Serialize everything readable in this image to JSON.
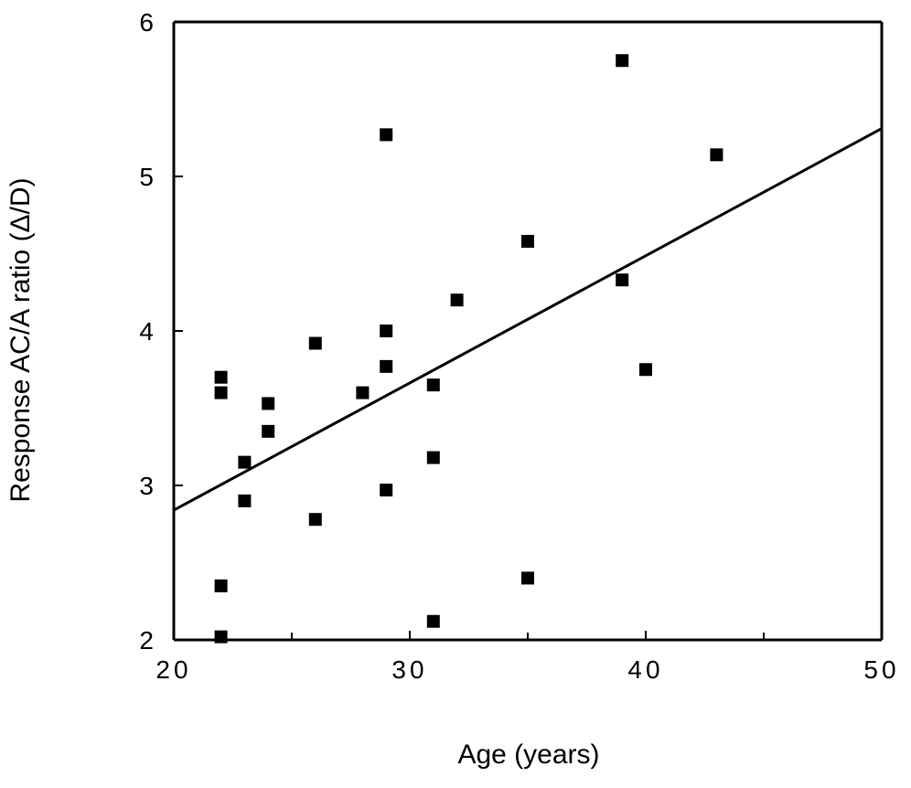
{
  "chart_data": {
    "type": "scatter",
    "title": "",
    "xlabel": "Age  (years)",
    "ylabel": "Response  AC/A  ratio  (Δ/D)",
    "xlim": [
      20,
      50
    ],
    "ylim": [
      2,
      6
    ],
    "x_ticks": [
      20,
      30,
      40,
      50
    ],
    "x_tick_labels": [
      "20",
      "30",
      "40",
      "50"
    ],
    "x_minor_ticks": [
      25,
      35,
      45
    ],
    "y_ticks": [
      2,
      3,
      4,
      5,
      6
    ],
    "y_tick_labels": [
      "2",
      "3",
      "4",
      "5",
      "6"
    ],
    "grid": false,
    "legend": "none",
    "marker": "filled-square",
    "colors": {
      "marker": "#000000",
      "line": "#000000",
      "axes": "#000000"
    },
    "points": [
      {
        "x": 22,
        "y": 2.02
      },
      {
        "x": 22,
        "y": 2.35
      },
      {
        "x": 22,
        "y": 3.6
      },
      {
        "x": 22,
        "y": 3.7
      },
      {
        "x": 23,
        "y": 3.15
      },
      {
        "x": 23,
        "y": 2.9
      },
      {
        "x": 24,
        "y": 3.53
      },
      {
        "x": 24,
        "y": 3.35
      },
      {
        "x": 26,
        "y": 3.92
      },
      {
        "x": 26,
        "y": 2.78
      },
      {
        "x": 28,
        "y": 3.6
      },
      {
        "x": 29,
        "y": 5.27
      },
      {
        "x": 29,
        "y": 4.0
      },
      {
        "x": 29,
        "y": 3.77
      },
      {
        "x": 29,
        "y": 2.97
      },
      {
        "x": 31,
        "y": 3.65
      },
      {
        "x": 31,
        "y": 3.18
      },
      {
        "x": 31,
        "y": 2.12
      },
      {
        "x": 32,
        "y": 4.2
      },
      {
        "x": 35,
        "y": 4.58
      },
      {
        "x": 35,
        "y": 2.4
      },
      {
        "x": 39,
        "y": 5.75
      },
      {
        "x": 39,
        "y": 4.33
      },
      {
        "x": 40,
        "y": 3.75
      },
      {
        "x": 43,
        "y": 5.14
      }
    ],
    "regression_line": {
      "x": [
        20,
        50
      ],
      "y": [
        2.84,
        5.31
      ]
    }
  }
}
